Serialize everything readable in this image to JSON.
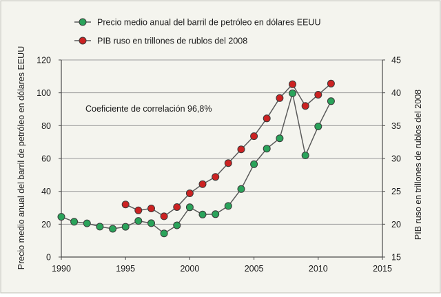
{
  "colors": {
    "background": "#f4f4ee",
    "frame": "#c8c8c0",
    "grid": "#9a9a9a",
    "axis": "#4a4a4a",
    "oil": "#2aa35a",
    "gdp": "#cc2222",
    "line": "#5a5a5a",
    "marker_stroke": "#3a3a3a"
  },
  "chart_data": {
    "type": "line",
    "title": "",
    "annotation": "Coeficiente de correlación 96,8%",
    "legend_position": "top",
    "grid": true,
    "x_axis": {
      "label": "",
      "min": 1990,
      "max": 2015,
      "ticks": [
        1990,
        1995,
        2000,
        2005,
        2010,
        2015
      ]
    },
    "y_left": {
      "label": "Precio medio anual del barril de petróleo en dólares EEUU",
      "min": 0,
      "max": 120,
      "ticks": [
        0,
        20,
        40,
        60,
        80,
        100,
        120
      ]
    },
    "y_right": {
      "label": "PIB ruso en trillones de rublos del 2008",
      "min": 15,
      "max": 45,
      "ticks": [
        15,
        20,
        25,
        30,
        35,
        40,
        45
      ]
    },
    "series": [
      {
        "name": "Precio medio anual del barril de petróleo en dólares EEUU",
        "axis": "left",
        "color_key": "oil",
        "x": [
          1990,
          1991,
          1992,
          1993,
          1994,
          1995,
          1996,
          1997,
          1998,
          1999,
          2000,
          2001,
          2002,
          2003,
          2004,
          2005,
          2006,
          2007,
          2008,
          2009,
          2010,
          2011
        ],
        "values": [
          24.5,
          21.5,
          20.5,
          18.5,
          17.2,
          18.4,
          22,
          20.6,
          14.4,
          19.3,
          30.3,
          25.9,
          26.1,
          31.1,
          41.4,
          56.5,
          66.0,
          72.3,
          99.7,
          61.9,
          79.5,
          94.9
        ]
      },
      {
        "name": "PIB ruso en trillones de rublos del 2008",
        "axis": "right",
        "color_key": "gdp",
        "x": [
          1995,
          1996,
          1997,
          1998,
          1999,
          2000,
          2001,
          2002,
          2003,
          2004,
          2005,
          2006,
          2007,
          2008,
          2009,
          2010,
          2011
        ],
        "values": [
          23.0,
          22.1,
          22.4,
          21.2,
          22.6,
          24.7,
          26.1,
          27.2,
          29.3,
          31.4,
          33.4,
          36.1,
          39.2,
          41.3,
          38.0,
          39.7,
          41.4
        ]
      }
    ]
  }
}
